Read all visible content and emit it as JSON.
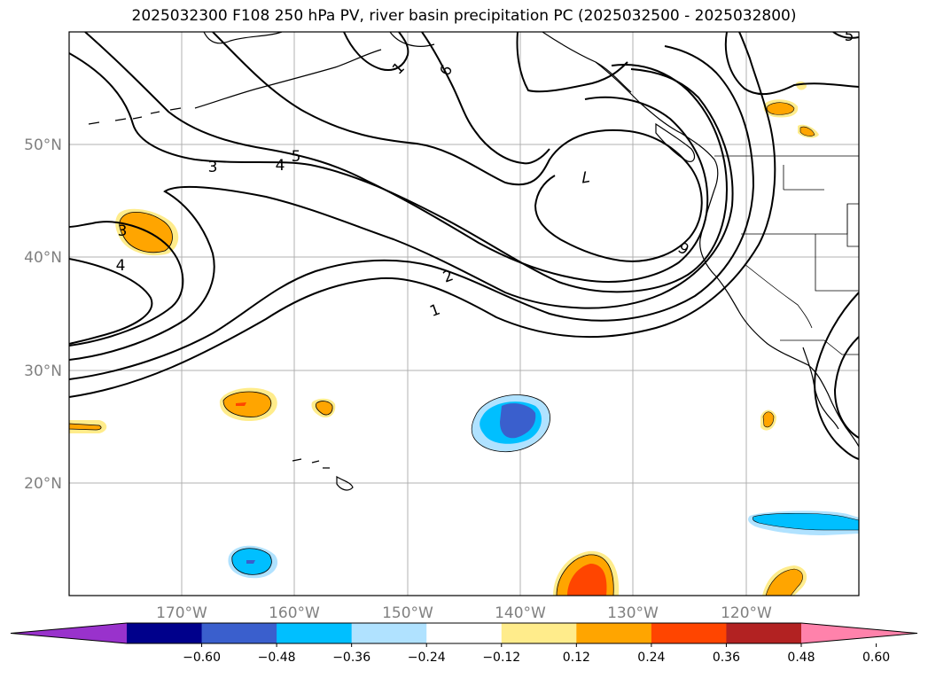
{
  "title": "2025032300 F108 250 hPa PV, river basin precipitation PC (2025032500 - 2025032800)",
  "map": {
    "lon_range": [
      -180,
      -110
    ],
    "lat_range": [
      10,
      60
    ],
    "lat_labels": [
      "50°N",
      "40°N",
      "30°N",
      "20°N"
    ],
    "lon_labels": [
      "170°W",
      "160°W",
      "150°W",
      "140°W",
      "130°W",
      "120°W"
    ],
    "gridlines": true
  },
  "contours": {
    "field": "250 hPa PV",
    "labels": [
      "1",
      "2",
      "3",
      "4",
      "5",
      "6",
      "7",
      "3",
      "4",
      "6",
      "1",
      "5"
    ]
  },
  "colorbar": {
    "ticks": [
      "−0.60",
      "−0.48",
      "−0.36",
      "−0.24",
      "−0.12",
      "0.12",
      "0.24",
      "0.36",
      "0.48",
      "0.60"
    ],
    "colors": [
      "#9932cc",
      "#00008b",
      "#3a5fcd",
      "#00bfff",
      "#b0e2ff",
      "#ffffff",
      "#ffec8b",
      "#ffa500",
      "#ff4500",
      "#b22222",
      "#ff82ab"
    ],
    "extend": "both"
  },
  "colors": {
    "positive_light": "#ffec8b",
    "positive_mid": "#ffa500",
    "positive_high": "#ff4500",
    "negative_light": "#b0e2ff",
    "negative_mid": "#00bfff",
    "negative_high": "#3a5fcd",
    "grid": "#b0b0b0"
  }
}
